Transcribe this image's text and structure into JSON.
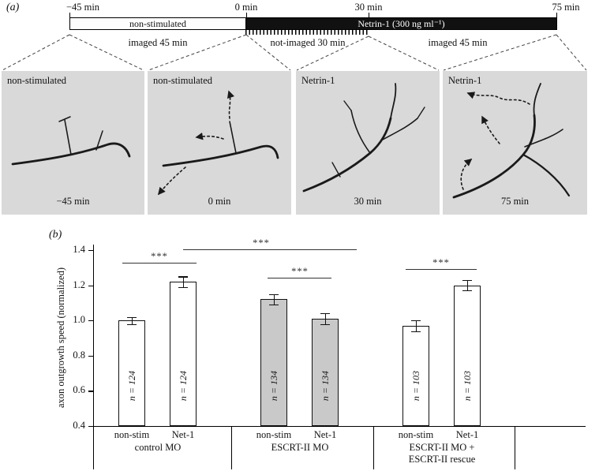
{
  "figure": {
    "panel_a_label": "(a)",
    "panel_b_label": "(b)"
  },
  "panel_a": {
    "timeline": {
      "ticks": [
        "−45 min",
        "0 min",
        "30 min",
        "75 min"
      ],
      "segment_nonstim": "non-stimulated",
      "segment_netrin": "Netrin-1 (300 ng ml⁻¹)",
      "phase_1": "imaged 45 min",
      "phase_2": "not-imaged 30 min",
      "phase_3": "imaged 45 min"
    },
    "micrographs": [
      {
        "title": "non-stimulated",
        "time": "−45 min"
      },
      {
        "title": "non-stimulated",
        "time": "0 min"
      },
      {
        "title": "Netrin-1",
        "time": "30 min"
      },
      {
        "title": "Netrin-1",
        "time": "75 min"
      }
    ]
  },
  "chart_data": {
    "type": "bar",
    "title": "",
    "xlabel": "",
    "ylabel": "axon outgrowth speed (normalized)",
    "ylim": [
      0.4,
      1.4
    ],
    "yticks": [
      0.4,
      0.6,
      0.8,
      1.0,
      1.2,
      1.4
    ],
    "bar_colors": {
      "white": "#ffffff",
      "grey": "#c9c9c9"
    },
    "groups": [
      {
        "label_lines": [
          "control MO"
        ],
        "bars": [
          {
            "condition": "non-stim",
            "value": 1.0,
            "error": 0.02,
            "n_label": "n = 124",
            "fill": "white"
          },
          {
            "condition": "Net-1",
            "value": 1.22,
            "error": 0.03,
            "n_label": "n = 124",
            "fill": "white"
          }
        ]
      },
      {
        "label_lines": [
          "ESCRT-II MO"
        ],
        "bars": [
          {
            "condition": "non-stim",
            "value": 1.12,
            "error": 0.03,
            "n_label": "n = 134",
            "fill": "grey"
          },
          {
            "condition": "Net-1",
            "value": 1.01,
            "error": 0.03,
            "n_label": "n = 134",
            "fill": "grey"
          }
        ]
      },
      {
        "label_lines": [
          "ESCRT-II MO +",
          "ESCRT-II rescue"
        ],
        "bars": [
          {
            "condition": "non-stim",
            "value": 0.97,
            "error": 0.03,
            "n_label": "n = 103",
            "fill": "white"
          },
          {
            "condition": "Net-1",
            "value": 1.2,
            "error": 0.03,
            "n_label": "n = 103",
            "fill": "white"
          }
        ]
      }
    ],
    "significance": [
      {
        "label": "***",
        "from_bar": 0,
        "to_bar": 1
      },
      {
        "label": "***",
        "from_bar": 1,
        "to_bar": 3
      },
      {
        "label": "***",
        "from_bar": 2,
        "to_bar": 3
      },
      {
        "label": "***",
        "from_bar": 4,
        "to_bar": 5
      }
    ]
  }
}
